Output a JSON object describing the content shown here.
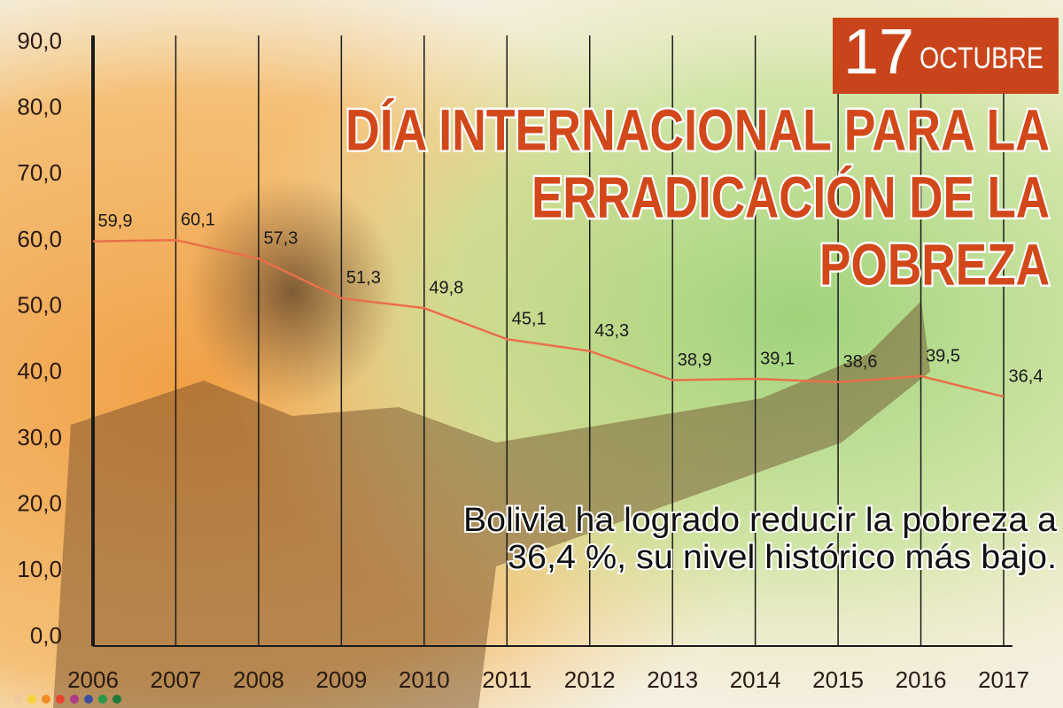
{
  "chart_data": {
    "type": "line",
    "date_day": "17",
    "date_month": "OCTUBRE",
    "title_lines": [
      "DÍA INTERNACIONAL PARA LA",
      "ERRADICACIÓN DE LA",
      "POBREZA"
    ],
    "subtitle_lines": [
      "Bolivia ha logrado reducir la pobreza a",
      "36,4 %, su nivel histórico más bajo."
    ],
    "categories": [
      "2006",
      "2007",
      "2008",
      "2009",
      "2010",
      "2011",
      "2012",
      "2013",
      "2014",
      "2015",
      "2016",
      "2017"
    ],
    "values": [
      59.9,
      60.1,
      57.3,
      51.3,
      49.8,
      45.1,
      43.3,
      38.9,
      39.1,
      38.6,
      39.5,
      36.4
    ],
    "value_labels": [
      "59,9",
      "60,1",
      "57,3",
      "51,3",
      "49,8",
      "45,1",
      "43,3",
      "38,9",
      "39,1",
      "38,6",
      "39,5",
      "36,4"
    ],
    "color": "#e8704a",
    "ylim": [
      0,
      90
    ],
    "yticks": [
      {
        "value": 0,
        "label": "0,0"
      },
      {
        "value": 10,
        "label": "10,0"
      },
      {
        "value": 20,
        "label": "20,0"
      },
      {
        "value": 30,
        "label": "30,0"
      },
      {
        "value": 40,
        "label": "40,0"
      },
      {
        "value": 50,
        "label": "50,0"
      },
      {
        "value": 60,
        "label": "60,0"
      },
      {
        "value": 70,
        "label": "70,0"
      },
      {
        "value": 80,
        "label": "80,0"
      },
      {
        "value": 90,
        "label": "90,0"
      }
    ]
  }
}
